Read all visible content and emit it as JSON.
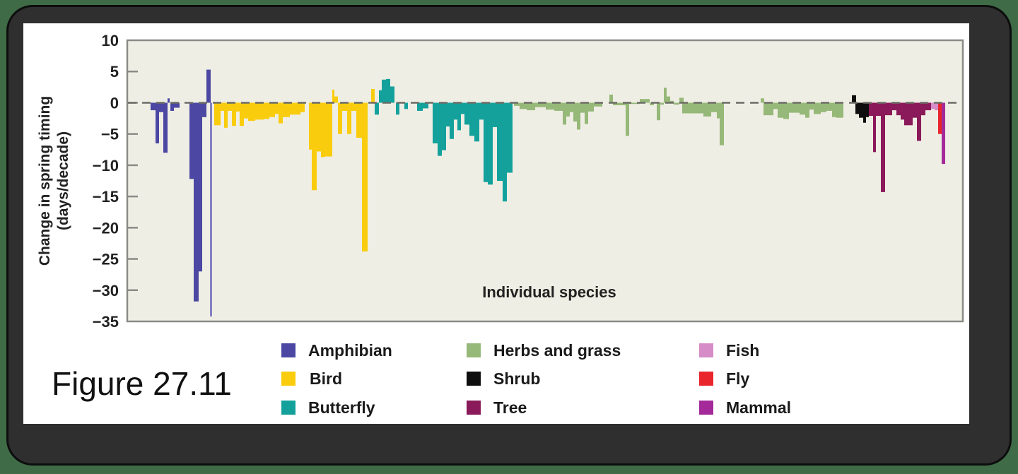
{
  "figure_label": "Figure 27.11",
  "chart_data": {
    "type": "bar",
    "title": "",
    "xlabel": "Individual species",
    "ylabel": "Change in spring timing (days/decade)",
    "ylabel_line1": "Change in spring timing",
    "ylabel_line2": "(days/decade)",
    "ylim": [
      -35,
      10
    ],
    "yticks": [
      10,
      5,
      0,
      -5,
      -10,
      -15,
      -20,
      -25,
      -30,
      -35
    ],
    "ytick_labels": [
      "10",
      "5",
      "0",
      "−5",
      "−10",
      "−15",
      "−20",
      "−25",
      "−30",
      "−35"
    ],
    "zero_line": "dashed",
    "grid": false,
    "plot_background": "#efeee4",
    "legend_position": "bottom",
    "legend": [
      {
        "label": "Amphibian",
        "color": "#4b47a3"
      },
      {
        "label": "Bird",
        "color": "#f9cc0d"
      },
      {
        "label": "Butterfly",
        "color": "#14a19c"
      },
      {
        "label": "Herbs and grass",
        "color": "#96b878"
      },
      {
        "label": "Shrub",
        "color": "#0e0e0e"
      },
      {
        "label": "Tree",
        "color": "#8a1a59"
      },
      {
        "label": "Fish",
        "color": "#d58cc7"
      },
      {
        "label": "Fly",
        "color": "#e8262b"
      },
      {
        "label": "Mammal",
        "color": "#a42a9a"
      }
    ],
    "series_note": "bars listed per group as [x_px, width_px, value_days_per_decade]",
    "series": [
      {
        "name": "Amphibian",
        "color": "#4b47a3",
        "bars": [
          [
            213,
            7,
            -1.2
          ],
          [
            220,
            5,
            -6.5
          ],
          [
            225,
            6,
            -1.5
          ],
          [
            231,
            6,
            -8.0
          ],
          [
            237,
            3,
            0.7
          ],
          [
            241,
            5,
            -1.3
          ],
          [
            246,
            8,
            -0.8
          ],
          [
            268,
            6,
            -12.2
          ],
          [
            274,
            7,
            -31.8
          ],
          [
            281,
            5,
            -27.0
          ],
          [
            286,
            6,
            -2.3
          ],
          [
            292,
            6,
            5.3
          ]
        ]
      },
      {
        "name": "Amphibian (light)",
        "color": "#8481c2",
        "bars": [
          [
            297,
            3,
            -34.2
          ]
        ]
      },
      {
        "name": "Bird",
        "color": "#f9cc0d",
        "bars": [
          [
            303,
            9,
            -3.6
          ],
          [
            312,
            5,
            -1.3
          ],
          [
            317,
            5,
            -4.0
          ],
          [
            322,
            6,
            -1.3
          ],
          [
            328,
            6,
            -3.7
          ],
          [
            334,
            5,
            -1.4
          ],
          [
            339,
            6,
            -3.7
          ],
          [
            345,
            6,
            -2.5
          ],
          [
            351,
            10,
            -2.9
          ],
          [
            361,
            12,
            -2.7
          ],
          [
            373,
            8,
            -2.6
          ],
          [
            381,
            8,
            -2.3
          ],
          [
            389,
            5,
            -1.8
          ],
          [
            394,
            6,
            -3.3
          ],
          [
            400,
            10,
            -2.3
          ],
          [
            410,
            15,
            -1.9
          ],
          [
            425,
            6,
            -1.5
          ],
          [
            437,
            4,
            -7.5
          ],
          [
            441,
            7,
            -14.0
          ],
          [
            448,
            6,
            -7.8
          ],
          [
            454,
            6,
            -8.7
          ],
          [
            460,
            10,
            -8.6
          ],
          [
            470,
            3,
            2.1
          ],
          [
            473,
            5,
            1.0
          ],
          [
            478,
            6,
            -5.0
          ],
          [
            484,
            7,
            -1.3
          ],
          [
            491,
            6,
            -5.0
          ],
          [
            497,
            7,
            -1.3
          ],
          [
            504,
            8,
            -5.6
          ],
          [
            512,
            8,
            -23.8
          ],
          [
            525,
            5,
            2.2
          ]
        ]
      },
      {
        "name": "Butterfly",
        "color": "#14a19c",
        "bars": [
          [
            530,
            6,
            -1.9
          ],
          [
            536,
            6,
            2.0
          ],
          [
            540,
            6,
            3.7
          ],
          [
            546,
            6,
            3.8
          ],
          [
            552,
            6,
            2.6
          ],
          [
            560,
            5,
            -1.9
          ],
          [
            572,
            5,
            -1.0
          ],
          [
            590,
            8,
            -1.3
          ],
          [
            598,
            8,
            -0.9
          ],
          [
            612,
            8,
            -6.5
          ],
          [
            619,
            6,
            -8.5
          ],
          [
            625,
            6,
            -7.6
          ],
          [
            631,
            5,
            -3.8
          ],
          [
            636,
            6,
            -5.8
          ],
          [
            642,
            5,
            -2.7
          ],
          [
            647,
            5,
            -4.4
          ],
          [
            652,
            5,
            -1.8
          ],
          [
            657,
            7,
            -3.5
          ],
          [
            664,
            7,
            -5.3
          ],
          [
            671,
            7,
            -6.2
          ],
          [
            678,
            6,
            -2.7
          ],
          [
            684,
            6,
            -12.7
          ],
          [
            690,
            7,
            -13.1
          ],
          [
            697,
            6,
            -3.9
          ],
          [
            703,
            8,
            -12.5
          ],
          [
            711,
            6,
            -15.8
          ],
          [
            717,
            8,
            -11.2
          ]
        ]
      },
      {
        "name": "Herbs and grass",
        "color": "#96b878",
        "bars": [
          [
            727,
            8,
            -0.5
          ],
          [
            735,
            10,
            -1.0
          ],
          [
            745,
            12,
            -1.2
          ],
          [
            757,
            15,
            -0.7
          ],
          [
            772,
            12,
            -1.1
          ],
          [
            784,
            12,
            -1.3
          ],
          [
            796,
            5,
            -3.5
          ],
          [
            801,
            5,
            -2.2
          ],
          [
            806,
            5,
            -1.5
          ],
          [
            811,
            5,
            -3.0
          ],
          [
            816,
            5,
            -4.3
          ],
          [
            821,
            6,
            -1.6
          ],
          [
            827,
            5,
            -3.4
          ],
          [
            832,
            8,
            -1.4
          ],
          [
            840,
            12,
            -0.6
          ],
          [
            862,
            5,
            1.3
          ],
          [
            867,
            10,
            -0.4
          ],
          [
            877,
            10,
            -0.4
          ],
          [
            885,
            5,
            -5.3
          ],
          [
            890,
            15,
            -0.2
          ],
          [
            905,
            6,
            0.6
          ],
          [
            911,
            8,
            0.6
          ],
          [
            919,
            6,
            -0.4
          ],
          [
            929,
            5,
            -2.8
          ],
          [
            934,
            5,
            -0.3
          ],
          [
            939,
            4,
            2.4
          ],
          [
            943,
            5,
            1.0
          ],
          [
            948,
            5,
            0.3
          ],
          [
            953,
            8,
            -0.3
          ],
          [
            961,
            6,
            0.8
          ],
          [
            965,
            18,
            -1.7
          ],
          [
            983,
            12,
            -1.7
          ],
          [
            995,
            5,
            -2.2
          ],
          [
            1000,
            6,
            -2.2
          ],
          [
            1006,
            8,
            -1.5
          ],
          [
            1014,
            4,
            -2.5
          ],
          [
            1018,
            6,
            -6.8
          ],
          [
            1076,
            5,
            0.7
          ],
          [
            1080,
            8,
            -2.0
          ],
          [
            1088,
            6,
            -2.0
          ],
          [
            1094,
            6,
            -1.0
          ],
          [
            1100,
            8,
            -2.4
          ],
          [
            1108,
            8,
            -2.6
          ],
          [
            1116,
            7,
            -1.6
          ],
          [
            1123,
            8,
            -1.6
          ],
          [
            1131,
            8,
            -1.9
          ],
          [
            1139,
            6,
            -2.4
          ],
          [
            1145,
            6,
            -1.1
          ],
          [
            1151,
            10,
            -1.8
          ],
          [
            1161,
            8,
            -1.5
          ],
          [
            1169,
            8,
            -1.3
          ],
          [
            1177,
            6,
            -2.3
          ],
          [
            1183,
            10,
            -2.4
          ]
        ]
      },
      {
        "name": "Shrub",
        "color": "#0e0e0e",
        "bars": [
          [
            1205,
            6,
            1.2
          ],
          [
            1210,
            5,
            -1.8
          ],
          [
            1215,
            6,
            -2.4
          ],
          [
            1221,
            4,
            -3.2
          ],
          [
            1225,
            4,
            -2.3
          ]
        ]
      },
      {
        "name": "Tree",
        "color": "#8a1a59",
        "bars": [
          [
            1229,
            6,
            -2.1
          ],
          [
            1235,
            4,
            -7.9
          ],
          [
            1239,
            7,
            -2.1
          ],
          [
            1246,
            6,
            -14.3
          ],
          [
            1252,
            6,
            -2.0
          ],
          [
            1258,
            4,
            -2.0
          ],
          [
            1262,
            6,
            -1.2
          ],
          [
            1268,
            6,
            -2.0
          ],
          [
            1274,
            5,
            -2.7
          ],
          [
            1279,
            6,
            -3.6
          ],
          [
            1285,
            6,
            -3.6
          ],
          [
            1291,
            6,
            -2.4
          ],
          [
            1297,
            6,
            -6.1
          ],
          [
            1303,
            6,
            -2.0
          ],
          [
            1309,
            8,
            -1.2
          ]
        ]
      },
      {
        "name": "Fish",
        "color": "#d58cc7",
        "bars": [
          [
            1317,
            5,
            -1.0
          ],
          [
            1322,
            5,
            -1.2
          ]
        ]
      },
      {
        "name": "Fly",
        "color": "#e8262b",
        "bars": [
          [
            1327,
            5,
            -5.0
          ]
        ]
      },
      {
        "name": "Mammal",
        "color": "#a42a9a",
        "bars": [
          [
            1332,
            5,
            -9.8
          ]
        ]
      }
    ]
  }
}
